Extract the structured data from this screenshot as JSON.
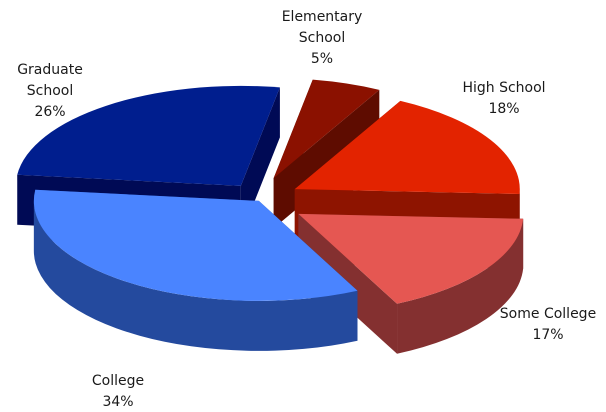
{
  "chart_data": {
    "type": "pie",
    "title": "",
    "style": "3d-exploded",
    "slices": [
      {
        "label": "Elementary School",
        "label_lines": [
          "Elementary",
          "School"
        ],
        "value": 5,
        "pct_text": "5%",
        "color": "#8B1100",
        "side_color": "#5E0C00"
      },
      {
        "label": "High School",
        "label_lines": [
          "High School"
        ],
        "value": 18,
        "pct_text": "18%",
        "color": "#E32300",
        "side_color": "#8E1400"
      },
      {
        "label": "Some College",
        "label_lines": [
          "Some College"
        ],
        "value": 17,
        "pct_text": "17%",
        "color": "#E55752",
        "side_color": "#843030"
      },
      {
        "label": "College",
        "label_lines": [
          "College"
        ],
        "value": 34,
        "pct_text": "34%",
        "color": "#4A84FF",
        "side_color": "#244A9E"
      },
      {
        "label": "Graduate School",
        "label_lines": [
          "Graduate",
          "School"
        ],
        "value": 26,
        "pct_text": "26%",
        "color": "#001E8E",
        "side_color": "#000A55"
      }
    ]
  }
}
